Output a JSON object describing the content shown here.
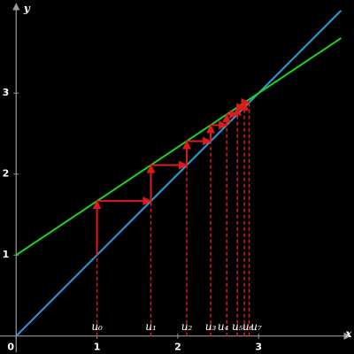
{
  "chart_data": {
    "type": "cobweb",
    "xlabel": "x",
    "ylabel": "y",
    "xlim": [
      -0.2,
      4.18
    ],
    "ylim": [
      -0.2,
      4.15
    ],
    "xticks": [
      0,
      1,
      2,
      3
    ],
    "yticks": [
      1,
      2,
      3
    ],
    "axis_color": "#9a9a9a",
    "series": [
      {
        "color": "#2a9de0",
        "x": [
          0,
          4.02
        ],
        "values": [
          0,
          4.02
        ]
      },
      {
        "color": "#1ed21e",
        "x": [
          0,
          4.02
        ],
        "values": [
          1,
          3.68
        ]
      }
    ],
    "sequence": {
      "color": "#e01a1a",
      "values": [
        1,
        1.667,
        2.111,
        2.407,
        2.605,
        2.737,
        2.824,
        2.883
      ],
      "labels": [
        "u₀",
        "u₁",
        "u₂",
        "u₃",
        "u₄",
        "u₅",
        "u₆",
        "u₇"
      ]
    }
  }
}
